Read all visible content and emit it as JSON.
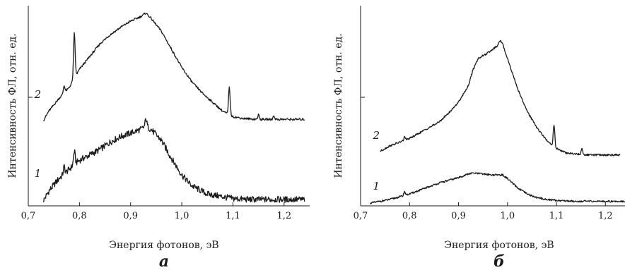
{
  "chart_data": [
    {
      "type": "line",
      "panel_label": "а",
      "xlabel": "Энергия фотонов, эВ",
      "ylabel": "Интенсивность ФЛ, отн. ед.",
      "xlim": [
        0.7,
        1.25
      ],
      "ylim": [
        0,
        2.2
      ],
      "xticks": [
        "0,7",
        "0,8",
        "0,9",
        "1,0",
        "1,1",
        "1,2"
      ],
      "series": [
        {
          "name": "1",
          "noise": 0.035,
          "x": [
            0.73,
            0.74,
            0.76,
            0.78,
            0.79,
            0.8,
            0.82,
            0.84,
            0.86,
            0.88,
            0.9,
            0.92,
            0.93,
            0.94,
            0.96,
            0.98,
            1.0,
            1.02,
            1.05,
            1.08,
            1.1,
            1.13,
            1.16,
            1.2,
            1.24
          ],
          "y": [
            0.06,
            0.16,
            0.3,
            0.4,
            0.46,
            0.5,
            0.56,
            0.62,
            0.7,
            0.76,
            0.8,
            0.84,
            0.88,
            0.84,
            0.72,
            0.52,
            0.34,
            0.22,
            0.13,
            0.1,
            0.08,
            0.07,
            0.07,
            0.07,
            0.07
          ],
          "peaks": [
            {
              "x": 0.79,
              "h": 0.14
            },
            {
              "x": 0.77,
              "h": 0.08
            },
            {
              "x": 0.93,
              "h": 0.08
            }
          ]
        },
        {
          "name": "2",
          "noise": 0.012,
          "x": [
            0.73,
            0.74,
            0.76,
            0.78,
            0.8,
            0.82,
            0.84,
            0.86,
            0.88,
            0.9,
            0.92,
            0.93,
            0.94,
            0.96,
            0.98,
            1.0,
            1.02,
            1.04,
            1.06,
            1.08,
            1.1,
            1.12,
            1.15,
            1.2,
            1.24
          ],
          "y": [
            0.94,
            1.04,
            1.18,
            1.3,
            1.5,
            1.64,
            1.78,
            1.88,
            1.96,
            2.03,
            2.08,
            2.12,
            2.06,
            1.92,
            1.72,
            1.52,
            1.36,
            1.24,
            1.14,
            1.04,
            0.98,
            0.96,
            0.95,
            0.95,
            0.95
          ],
          "peaks": [
            {
              "x": 0.79,
              "h": 0.5
            },
            {
              "x": 0.77,
              "h": 0.08
            },
            {
              "x": 1.093,
              "h": 0.3
            },
            {
              "x": 1.15,
              "h": 0.05
            },
            {
              "x": 1.18,
              "h": 0.04
            }
          ]
        }
      ]
    },
    {
      "type": "line",
      "panel_label": "б",
      "xlabel": "Энергия фотонов, эВ",
      "ylabel": "Интенсивность ФЛ, отн. ед.",
      "xlim": [
        0.7,
        1.24
      ],
      "ylim": [
        0,
        2.2
      ],
      "xticks": [
        "0,7",
        "0,8",
        "0,9",
        "1,0",
        "1,1",
        "1,2"
      ],
      "series": [
        {
          "name": "1",
          "noise": 0.01,
          "x": [
            0.72,
            0.74,
            0.76,
            0.78,
            0.8,
            0.82,
            0.84,
            0.86,
            0.88,
            0.9,
            0.92,
            0.93,
            0.95,
            0.97,
            0.99,
            1.0,
            1.02,
            1.04,
            1.06,
            1.08,
            1.1,
            1.14,
            1.18,
            1.24
          ],
          "y": [
            0.03,
            0.05,
            0.07,
            0.1,
            0.13,
            0.17,
            0.21,
            0.25,
            0.28,
            0.31,
            0.35,
            0.36,
            0.35,
            0.34,
            0.34,
            0.3,
            0.2,
            0.13,
            0.09,
            0.07,
            0.06,
            0.05,
            0.05,
            0.05
          ],
          "peaks": [
            {
              "x": 0.79,
              "h": 0.04
            }
          ]
        },
        {
          "name": "2",
          "noise": 0.01,
          "x": [
            0.74,
            0.76,
            0.78,
            0.8,
            0.82,
            0.84,
            0.86,
            0.88,
            0.9,
            0.92,
            0.93,
            0.94,
            0.96,
            0.97,
            0.98,
            0.985,
            0.99,
            1.0,
            1.02,
            1.04,
            1.06,
            1.08,
            1.1,
            1.12,
            1.16,
            1.2,
            1.23
          ],
          "y": [
            0.6,
            0.66,
            0.7,
            0.74,
            0.8,
            0.86,
            0.92,
            1.02,
            1.14,
            1.32,
            1.5,
            1.62,
            1.68,
            1.72,
            1.76,
            1.82,
            1.78,
            1.62,
            1.3,
            1.04,
            0.86,
            0.72,
            0.63,
            0.58,
            0.56,
            0.56,
            0.56
          ],
          "peaks": [
            {
              "x": 0.79,
              "h": 0.04
            },
            {
              "x": 1.095,
              "h": 0.24
            },
            {
              "x": 1.152,
              "h": 0.06
            }
          ]
        }
      ]
    }
  ]
}
